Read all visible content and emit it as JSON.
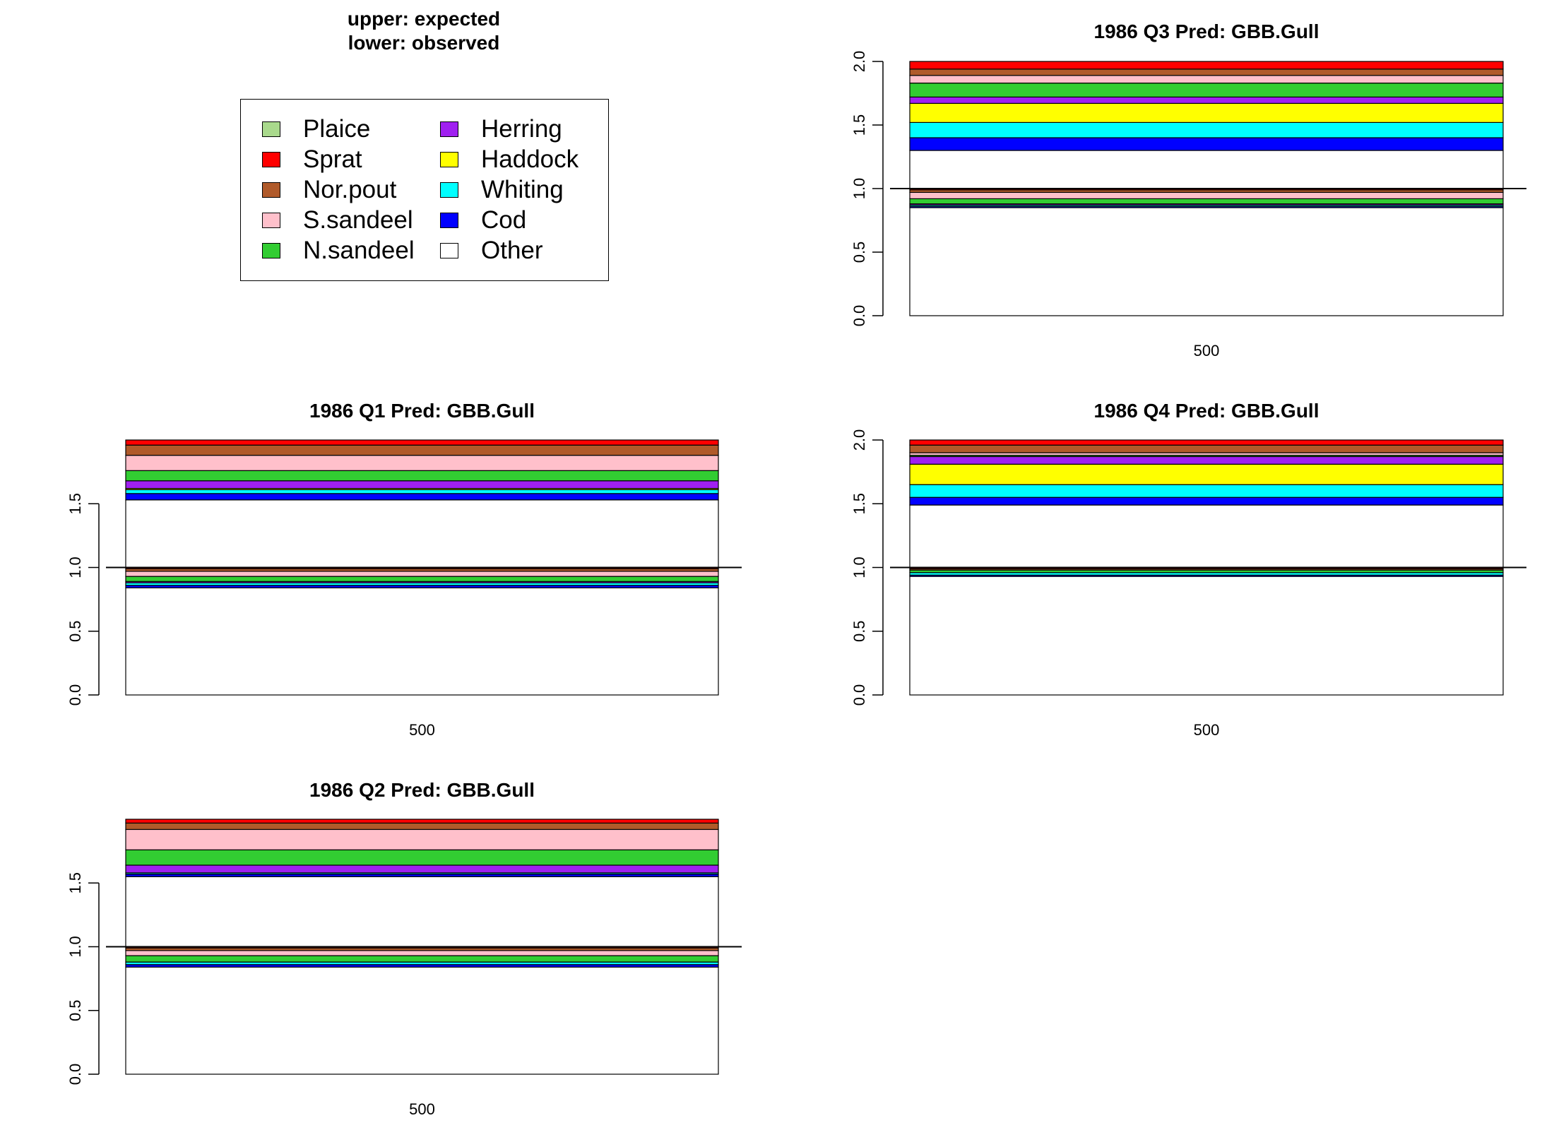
{
  "note": {
    "line1": "upper: expected",
    "line2": "lower: observed"
  },
  "legend": [
    {
      "label": "Plaice",
      "color": "#a9d98c"
    },
    {
      "label": "Sprat",
      "color": "#ff0000"
    },
    {
      "label": "Nor.pout",
      "color": "#b05a2a"
    },
    {
      "label": "S.sandeel",
      "color": "#ffc0cb"
    },
    {
      "label": "N.sandeel",
      "color": "#32cd32"
    },
    {
      "label": "Herring",
      "color": "#a020f0"
    },
    {
      "label": "Haddock",
      "color": "#ffff00"
    },
    {
      "label": "Whiting",
      "color": "#00ffff"
    },
    {
      "label": "Cod",
      "color": "#0000ff"
    },
    {
      "label": "Other",
      "color": "#ffffff"
    }
  ],
  "chart_data": [
    {
      "type": "bar",
      "title": "1986 Q3  Pred: GBB.Gull",
      "categories": [
        "500"
      ],
      "ylim": [
        0,
        2
      ],
      "yticks": [
        "0.0",
        "0.5",
        "1.0",
        "1.5",
        "2.0"
      ],
      "reference_line": 1.0,
      "expected": [
        {
          "name": "Other",
          "value": 0.3
        },
        {
          "name": "Cod",
          "value": 0.1
        },
        {
          "name": "Whiting",
          "value": 0.12
        },
        {
          "name": "Haddock",
          "value": 0.15
        },
        {
          "name": "Herring",
          "value": 0.05
        },
        {
          "name": "N.sandeel",
          "value": 0.11
        },
        {
          "name": "S.sandeel",
          "value": 0.06
        },
        {
          "name": "Nor.pout",
          "value": 0.05
        },
        {
          "name": "Sprat",
          "value": 0.06
        }
      ],
      "observed": [
        {
          "name": "Other",
          "value": 0.85
        },
        {
          "name": "Cod",
          "value": 0.01
        },
        {
          "name": "Whiting",
          "value": 0.01
        },
        {
          "name": "Herring",
          "value": 0.01
        },
        {
          "name": "N.sandeel",
          "value": 0.04
        },
        {
          "name": "S.sandeel",
          "value": 0.05
        },
        {
          "name": "Nor.pout",
          "value": 0.02
        },
        {
          "name": "Sprat",
          "value": 0.01
        }
      ]
    },
    {
      "type": "bar",
      "title": "1986 Q1  Pred: GBB.Gull",
      "categories": [
        "500"
      ],
      "ylim": [
        0,
        2
      ],
      "yticks": [
        "0.0",
        "0.5",
        "1.0",
        "1.5"
      ],
      "reference_line": 1.0,
      "expected": [
        {
          "name": "Other",
          "value": 0.53
        },
        {
          "name": "Cod",
          "value": 0.05
        },
        {
          "name": "Whiting",
          "value": 0.03
        },
        {
          "name": "Haddock",
          "value": 0.01
        },
        {
          "name": "Herring",
          "value": 0.06
        },
        {
          "name": "N.sandeel",
          "value": 0.08
        },
        {
          "name": "S.sandeel",
          "value": 0.12
        },
        {
          "name": "Nor.pout",
          "value": 0.08
        },
        {
          "name": "Sprat",
          "value": 0.04
        }
      ],
      "observed": [
        {
          "name": "Other",
          "value": 0.84
        },
        {
          "name": "Cod",
          "value": 0.02
        },
        {
          "name": "Whiting",
          "value": 0.02
        },
        {
          "name": "Herring",
          "value": 0.01
        },
        {
          "name": "N.sandeel",
          "value": 0.04
        },
        {
          "name": "S.sandeel",
          "value": 0.04
        },
        {
          "name": "Nor.pout",
          "value": 0.02
        },
        {
          "name": "Sprat",
          "value": 0.01
        }
      ]
    },
    {
      "type": "bar",
      "title": "1986 Q4  Pred: GBB.Gull",
      "categories": [
        "500"
      ],
      "ylim": [
        0,
        2
      ],
      "yticks": [
        "0.0",
        "0.5",
        "1.0",
        "1.5",
        "2.0"
      ],
      "reference_line": 1.0,
      "expected": [
        {
          "name": "Other",
          "value": 0.49
        },
        {
          "name": "Cod",
          "value": 0.06
        },
        {
          "name": "Whiting",
          "value": 0.1
        },
        {
          "name": "Haddock",
          "value": 0.16
        },
        {
          "name": "Herring",
          "value": 0.06
        },
        {
          "name": "N.sandeel",
          "value": 0.01
        },
        {
          "name": "S.sandeel",
          "value": 0.02
        },
        {
          "name": "Nor.pout",
          "value": 0.06
        },
        {
          "name": "Sprat",
          "value": 0.04
        }
      ],
      "observed": [
        {
          "name": "Other",
          "value": 0.93
        },
        {
          "name": "Cod",
          "value": 0.01
        },
        {
          "name": "Whiting",
          "value": 0.02
        },
        {
          "name": "N.sandeel",
          "value": 0.02
        },
        {
          "name": "Nor.pout",
          "value": 0.01
        },
        {
          "name": "Sprat",
          "value": 0.01
        }
      ]
    },
    {
      "type": "bar",
      "title": "1986 Q2  Pred: GBB.Gull",
      "categories": [
        "500"
      ],
      "ylim": [
        0,
        2
      ],
      "yticks": [
        "0.0",
        "0.5",
        "1.0",
        "1.5"
      ],
      "reference_line": 1.0,
      "expected": [
        {
          "name": "Other",
          "value": 0.55
        },
        {
          "name": "Cod",
          "value": 0.02
        },
        {
          "name": "Whiting",
          "value": 0.01
        },
        {
          "name": "Herring",
          "value": 0.06
        },
        {
          "name": "N.sandeel",
          "value": 0.12
        },
        {
          "name": "S.sandeel",
          "value": 0.16
        },
        {
          "name": "Nor.pout",
          "value": 0.05
        },
        {
          "name": "Sprat",
          "value": 0.03
        }
      ],
      "observed": [
        {
          "name": "Other",
          "value": 0.84
        },
        {
          "name": "Cod",
          "value": 0.02
        },
        {
          "name": "Whiting",
          "value": 0.02
        },
        {
          "name": "N.sandeel",
          "value": 0.05
        },
        {
          "name": "S.sandeel",
          "value": 0.04
        },
        {
          "name": "Nor.pout",
          "value": 0.02
        },
        {
          "name": "Sprat",
          "value": 0.01
        }
      ]
    }
  ]
}
